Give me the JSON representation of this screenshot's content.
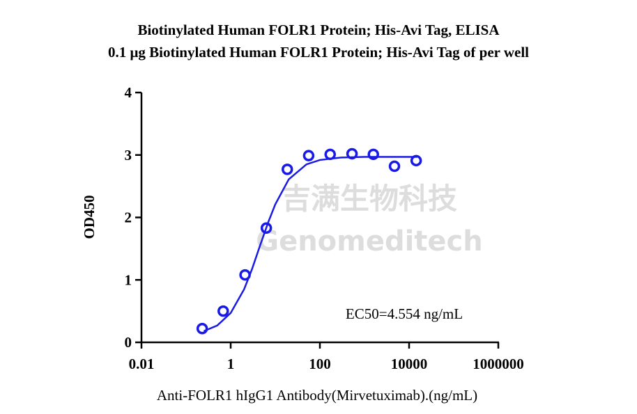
{
  "chart_data": {
    "type": "scatter",
    "title": "Biotinylated Human FOLR1 Protein; His-Avi Tag,  ELISA",
    "subtitle": "0.1 μg Biotinylated Human FOLR1 Protein; His-Avi Tag of per well",
    "x_label": "Anti-FOLR1 hIgG1 Antibody(Mirvetuximab).(ng/mL)",
    "y_label": "OD450",
    "annotation": "EC50=4.554 ng/mL",
    "watermark": [
      "吉满生物科技",
      "Genomeditech"
    ],
    "x_log": true,
    "xlim": [
      0.01,
      1000000
    ],
    "xticks": [
      0.01,
      1,
      100,
      10000,
      1000000
    ],
    "ylim": [
      0,
      4
    ],
    "yticks": [
      0,
      1,
      2,
      3,
      4
    ],
    "series": [
      {
        "color": "#1a1ae6",
        "marker": "circle",
        "x": [
          0.23,
          0.68,
          2.1,
          6.3,
          18.6,
          56,
          170,
          525,
          1580,
          4700,
          14400
        ],
        "values": [
          0.22,
          0.5,
          1.08,
          1.83,
          2.77,
          2.99,
          3.01,
          3.02,
          3.01,
          2.82,
          2.91
        ]
      },
      {
        "color": "#1a1ae6",
        "marker": "line",
        "x": [
          0.25,
          0.5,
          1,
          2,
          3,
          4.554,
          7,
          10,
          20,
          50,
          100,
          300,
          1000,
          15000
        ],
        "values": [
          0.18,
          0.27,
          0.47,
          0.85,
          1.17,
          1.55,
          1.93,
          2.21,
          2.61,
          2.85,
          2.92,
          2.96,
          2.97,
          2.97
        ]
      }
    ]
  }
}
